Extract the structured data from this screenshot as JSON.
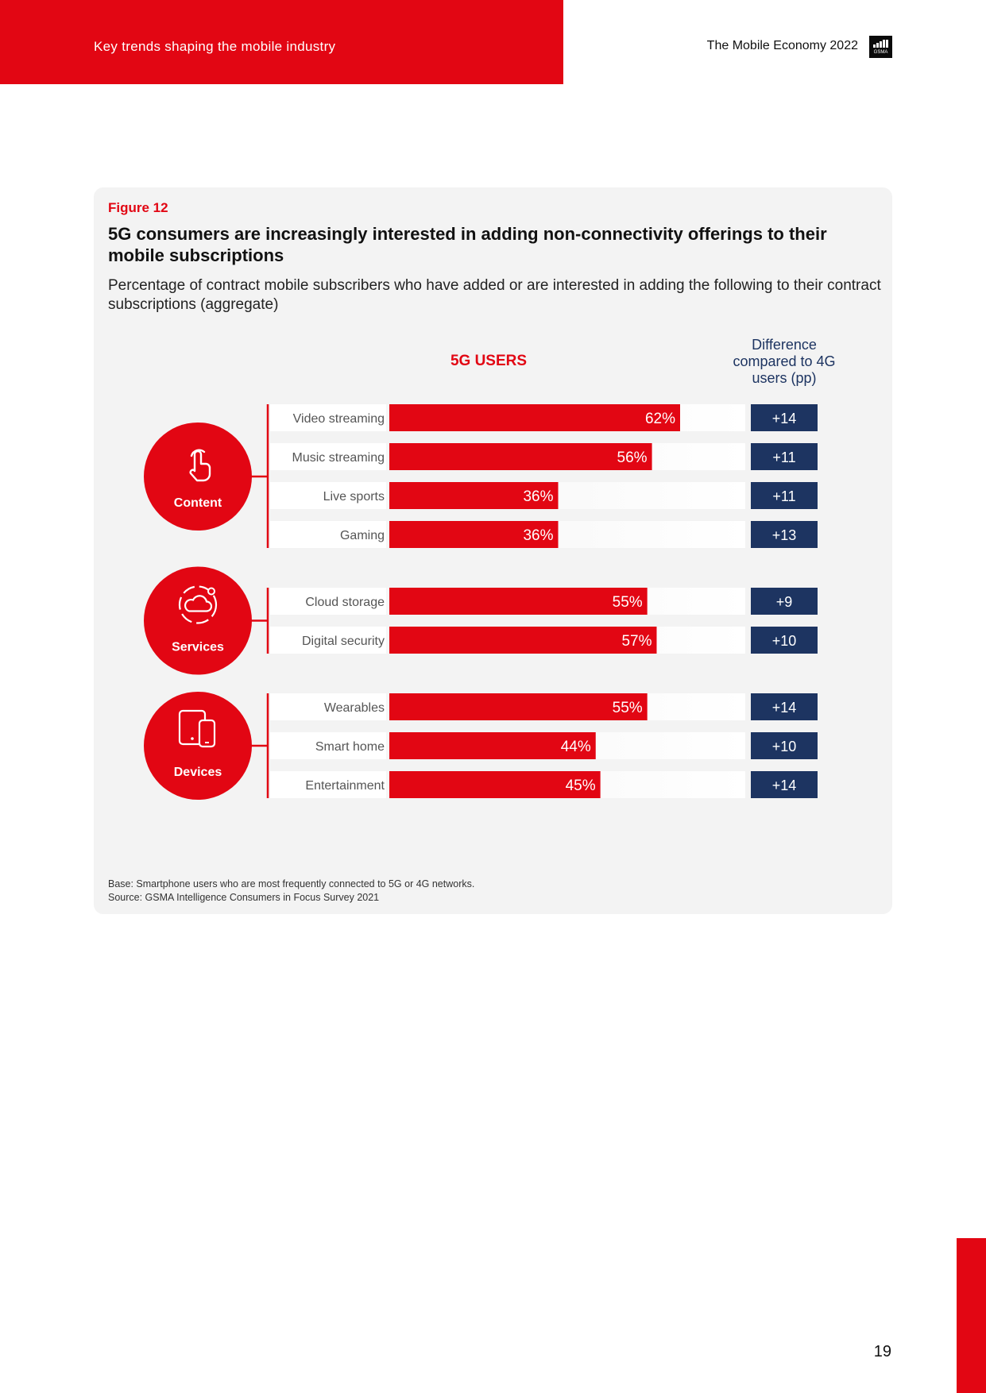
{
  "header": {
    "section_title": "Key trends shaping the mobile industry",
    "report_title": "The Mobile Economy 2022",
    "logo_text": "GSMA"
  },
  "figure": {
    "label": "Figure 12",
    "title": "5G consumers are increasingly interested in adding non-connectivity offerings to their mobile subscriptions",
    "subtitle": "Percentage of contract mobile subscribers who have added or are interested in adding the following to their contract subscriptions (aggregate)",
    "column_5g": "5G USERS",
    "column_diff": "Difference compared to 4G users (pp)",
    "footnote_base": "Base: Smartphone users who are most frequently connected to 5G or 4G networks.",
    "footnote_source": "Source: GSMA Intelligence Consumers in Focus Survey 2021"
  },
  "chart_data": {
    "type": "bar",
    "orientation": "horizontal",
    "title": "5G USERS",
    "value_axis": [
      0,
      100
    ],
    "unit": "%",
    "colors": {
      "bar": "#e20613",
      "diff_box": "#1d3461",
      "category_circle": "#e20613"
    },
    "groups": [
      {
        "name": "Content",
        "icon": "touch-hand-icon",
        "items": [
          {
            "label": "Video streaming",
            "value": 62,
            "value_label": "62%",
            "diff": 14,
            "diff_label": "+14"
          },
          {
            "label": "Music streaming",
            "value": 56,
            "value_label": "56%",
            "diff": 11,
            "diff_label": "+11"
          },
          {
            "label": "Live sports",
            "value": 36,
            "value_label": "36%",
            "diff": 11,
            "diff_label": "+11"
          },
          {
            "label": "Gaming",
            "value": 36,
            "value_label": "36%",
            "diff": 13,
            "diff_label": "+13"
          }
        ]
      },
      {
        "name": "Services",
        "icon": "cloud-icon",
        "items": [
          {
            "label": "Cloud storage",
            "value": 55,
            "value_label": "55%",
            "diff": 9,
            "diff_label": "+9"
          },
          {
            "label": "Digital security",
            "value": 57,
            "value_label": "57%",
            "diff": 10,
            "diff_label": "+10"
          }
        ]
      },
      {
        "name": "Devices",
        "icon": "devices-icon",
        "items": [
          {
            "label": "Wearables",
            "value": 55,
            "value_label": "55%",
            "diff": 14,
            "diff_label": "+14"
          },
          {
            "label": "Smart home",
            "value": 44,
            "value_label": "44%",
            "diff": 10,
            "diff_label": "+10"
          },
          {
            "label": "Entertainment",
            "value": 45,
            "value_label": "45%",
            "diff": 14,
            "diff_label": "+14"
          }
        ]
      }
    ]
  },
  "page_number": "19"
}
